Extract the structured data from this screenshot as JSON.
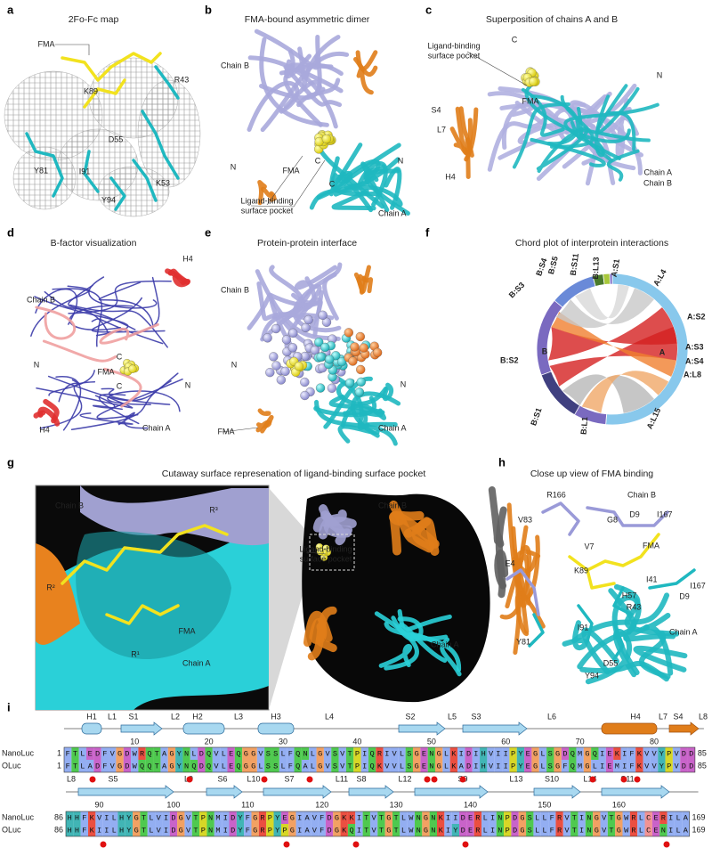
{
  "panels": [
    {
      "label": "a",
      "title": "2Fo-Fc map",
      "annotations": [
        "FMA",
        "K89",
        "R43",
        "D55",
        "Y81",
        "I91",
        "Y94",
        "K53"
      ]
    },
    {
      "label": "b",
      "title": "FMA-bound asymmetric dimer",
      "annotations": [
        "Chain B",
        "N",
        "C",
        "FMA",
        "C",
        "N",
        "Ligand-binding",
        "surface pocket",
        "Chain A"
      ]
    },
    {
      "label": "c",
      "title": "Superposition of chains A and B",
      "annotations": [
        "Ligand-binding",
        "surface pocket",
        "C",
        "N",
        "FMA",
        "S4",
        "L7",
        "H4",
        "Chain A",
        "Chain B"
      ]
    },
    {
      "label": "d",
      "title": "B-factor visualization",
      "annotations": [
        "H4",
        "Chain B",
        "N",
        "C",
        "FMA",
        "C",
        "N",
        "H4",
        "Chain A"
      ]
    },
    {
      "label": "e",
      "title": "Protein-protein interface",
      "annotations": [
        "Chain B",
        "N",
        "N",
        "FMA",
        "Chain A"
      ]
    },
    {
      "label": "f",
      "title": "Chord plot of interprotein interactions",
      "annotations": [
        "B:S4",
        "B:S5",
        "B:S11",
        "B:L13",
        "A:S1",
        "A:L4",
        "B:S3",
        "A:S2",
        "B:S2",
        "B",
        "A",
        "A:S3",
        "A:S4",
        "A:L8",
        "B:S1",
        "B:L1",
        "A:L15"
      ]
    },
    {
      "label": "g",
      "title": "Cutaway surface represenation of ligand-binding surface pocket",
      "annotations": [
        "Chain B",
        "R³",
        "R²",
        "FMA",
        "R¹",
        "Chain A",
        "Chain B",
        "Ligand-binding",
        "surface pocket",
        "Chain A"
      ]
    },
    {
      "label": "h",
      "title": "Close up view of FMA binding",
      "annotations": [
        "R166",
        "Chain B",
        "V83",
        "G8",
        "D9",
        "I167",
        "V7",
        "FMA",
        "E4",
        "K89",
        "I41",
        "D9",
        "I167",
        "H57",
        "R43",
        "Y81",
        "I91",
        "D55",
        "Y94",
        "Chain A"
      ]
    }
  ],
  "alignment": {
    "label": "i",
    "rows": [
      {
        "structure": [
          "H1",
          "L1",
          "S1",
          "L2",
          "H2",
          "L3",
          "H3",
          "L4",
          "S2",
          "L5",
          "S3",
          "L6",
          "H4",
          "L7",
          "S4",
          "L8"
        ],
        "position_numbers": [
          10,
          20,
          30,
          40,
          50,
          60,
          70,
          80
        ],
        "sequences": [
          {
            "name": "NanoLuc",
            "start": 1,
            "end": 85,
            "residues": "FTLEDFVGDWRQTAGYNLDQVLEQGGVSSLFQNLGVSVTPIQRIVLSGENGLKIDIHVIIPYEGLSGDQMGQIEKIFKVVYPVDD"
          },
          {
            "name": "OLuc",
            "start": 1,
            "end": 85,
            "residues": "FTLADFVGDWQQTAGYNQDQVLEQGGLSSLFQALGVSVTPIQKVVLSGENGLKADIHVIIPYEGLSGFQMGLIEMIFKVVYPVDD"
          }
        ]
      },
      {
        "structure": [
          "L8",
          "S5",
          "L9",
          "S6",
          "L10",
          "S7",
          "L11",
          "S8",
          "L12",
          "S9",
          "L13",
          "S10",
          "L14",
          "S11"
        ],
        "position_numbers": [
          90,
          100,
          110,
          120,
          130,
          140,
          150,
          160
        ],
        "sequences": [
          {
            "name": "NanoLuc",
            "start": 86,
            "end": 169,
            "residues": "HHFKVILHYGTLVIDGVTPNMIDYFGRPYEGIAVFDGKKITVTGTLWNGNKIIDERLINPDGSLLFRVTINGVTGWRLCERILA"
          },
          {
            "name": "OLuc",
            "start": 86,
            "end": 169,
            "residues": "HHFKIILHYGTLVIDGVTPNMIDYFGRPYPGIAVFDGKQITVTGTLWNGNKIYDERLINPDGSLLFRVTINGVTGWRLCENILA"
          }
        ]
      }
    ]
  }
}
